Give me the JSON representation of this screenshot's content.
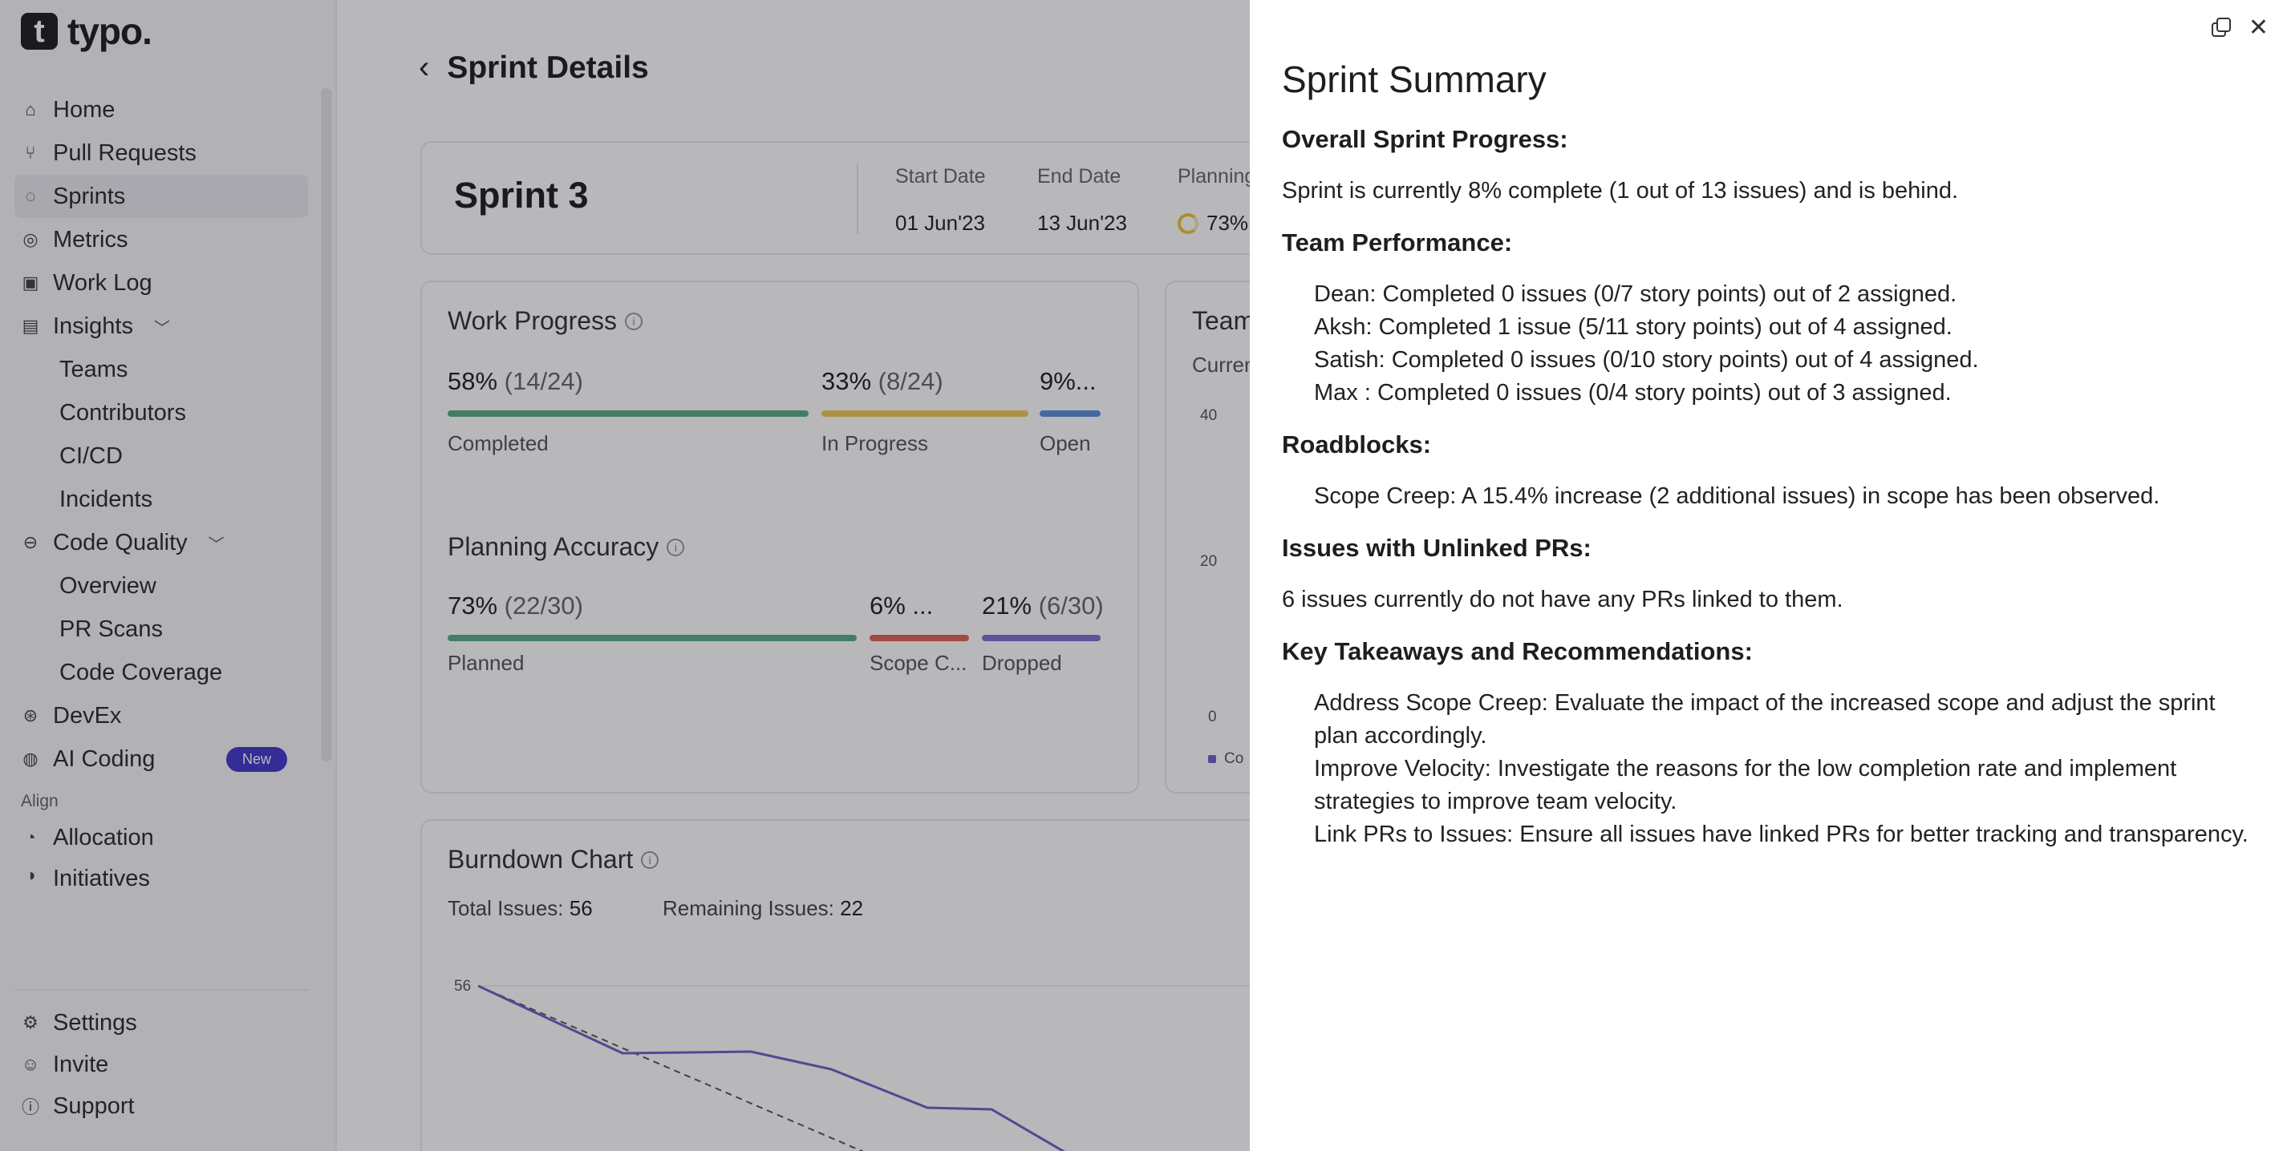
{
  "logo": {
    "mark": "t",
    "text": "typo."
  },
  "sidebar": {
    "items": [
      {
        "label": "Home",
        "icon": "home-icon",
        "glyph": "⌂"
      },
      {
        "label": "Pull Requests",
        "icon": "pull-request-icon",
        "glyph": "⑂"
      },
      {
        "label": "Sprints",
        "icon": "sprint-icon",
        "glyph": "◌"
      },
      {
        "label": "Metrics",
        "icon": "metrics-icon",
        "glyph": "◎"
      },
      {
        "label": "Work Log",
        "icon": "work-log-icon",
        "glyph": "▣"
      }
    ],
    "insights": {
      "label": "Insights",
      "icon": "insights-icon",
      "glyph": "▤"
    },
    "insights_sub": [
      "Teams",
      "Contributors",
      "CI/CD",
      "Incidents"
    ],
    "code_quality": {
      "label": "Code Quality",
      "icon": "code-quality-icon",
      "glyph": "⊖"
    },
    "code_quality_sub": [
      "Overview",
      "PR Scans",
      "Code Coverage"
    ],
    "devex": {
      "label": "DevEx",
      "icon": "devex-icon",
      "glyph": "⊛"
    },
    "ai_coding": {
      "label": "AI Coding",
      "icon": "ai-coding-icon",
      "glyph": "◍",
      "badge": "New"
    },
    "align_label": "Align",
    "allocation": {
      "label": "Allocation",
      "icon": "allocation-icon",
      "glyph": "◔"
    },
    "initiatives": {
      "label": "Initiatives",
      "icon": "initiatives-icon",
      "glyph": "◑"
    },
    "bottom": [
      {
        "label": "Settings",
        "icon": "settings-icon",
        "glyph": "⚙"
      },
      {
        "label": "Invite",
        "icon": "invite-icon",
        "glyph": "☺"
      },
      {
        "label": "Support",
        "icon": "support-icon",
        "glyph": "ⓘ"
      }
    ]
  },
  "main": {
    "title": "Sprint Details",
    "sprint": {
      "name": "Sprint 3",
      "start_label": "Start Date",
      "start_value": "01 Jun'23",
      "end_label": "End Date",
      "end_value": "13 Jun'23",
      "planning_label": "Planning",
      "planning_value": "73%"
    },
    "work_progress": {
      "title": "Work Progress",
      "completed": {
        "pct": "58%",
        "count": "(14/24)",
        "label": "Completed",
        "color": "#5aab86"
      },
      "in_progress": {
        "pct": "33%",
        "count": "(8/24)",
        "label": "In Progress",
        "color": "#f1c75b"
      },
      "open": {
        "pct": "9%...",
        "label": "Open",
        "color": "#5b8fd9"
      }
    },
    "planning_accuracy": {
      "title": "Planning Accuracy",
      "planned": {
        "pct": "73%",
        "count": "(22/30)",
        "label": "Planned",
        "color": "#5aab86"
      },
      "scope": {
        "pct": "6% ...",
        "label": "Scope C...",
        "color": "#e0605a"
      },
      "dropped": {
        "pct": "21%",
        "count": "(6/30)",
        "label": "Dropped",
        "color": "#7c6fd0"
      }
    },
    "team": {
      "title": "Team",
      "current": "Curren",
      "ticks": [
        "40",
        "20",
        "0"
      ],
      "legend": "Co"
    },
    "burndown": {
      "title": "Burndown Chart",
      "total_label": "Total Issues:",
      "total_value": "56",
      "remaining_label": "Remaining Issues:",
      "remaining_value": "22",
      "ytick": "56"
    }
  },
  "drawer": {
    "title": "Sprint Summary",
    "h_overall": "Overall Sprint Progress:",
    "overall_text": "Sprint is currently 8% complete (1 out of 13 issues) and is behind.",
    "h_team": "Team Performance:",
    "team": [
      "Dean: Completed 0 issues (0/7 story points) out of 2 assigned.",
      "Aksh: Completed 1 issue (5/11 story points) out of 4 assigned.",
      "Satish: Completed 0 issues (0/10 story points) out of 4 assigned.",
      "Max : Completed 0 issues (0/4 story points) out of 3 assigned."
    ],
    "h_roadblocks": "Roadblocks:",
    "roadblocks": [
      "Scope Creep: A 15.4% increase (2 additional issues) in scope has been observed."
    ],
    "h_unlinked": "Issues with Unlinked PRs:",
    "unlinked_text": "6 issues currently do not have any PRs linked to them.",
    "h_takeaways": "Key Takeaways and Recommendations:",
    "takeaways": [
      "Address Scope Creep: Evaluate the impact of the increased scope and adjust the sprint plan accordingly.",
      "Improve Velocity: Investigate the reasons for the low completion rate and implement strategies to improve team velocity.",
      "Link PRs to Issues: Ensure all issues have linked PRs for better tracking and transparency."
    ]
  }
}
